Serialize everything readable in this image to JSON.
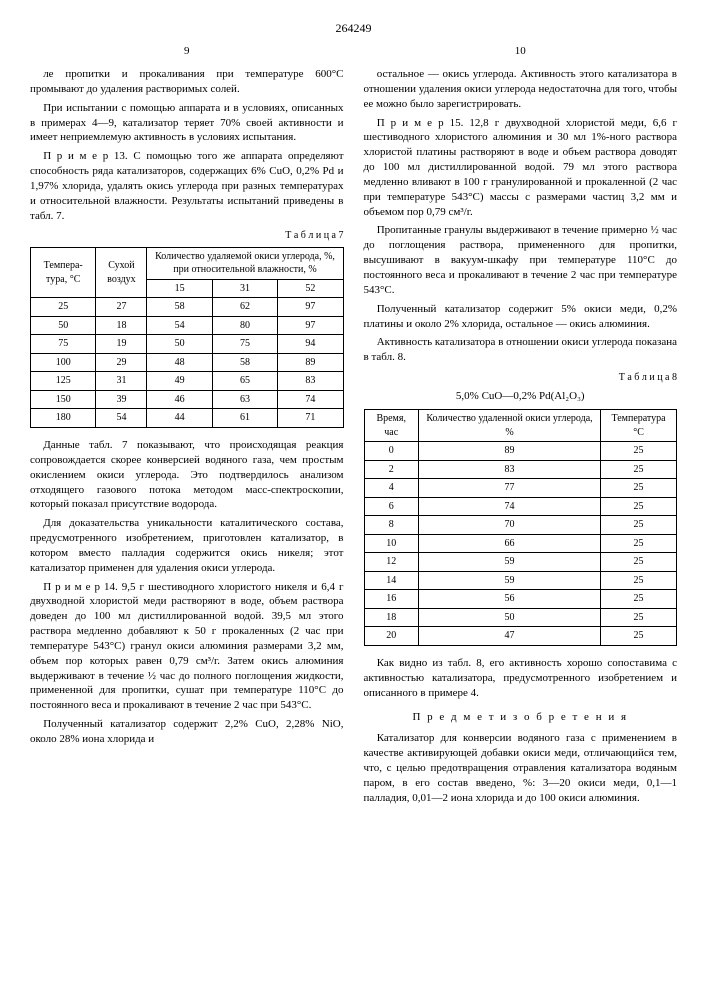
{
  "doc_number": "264249",
  "left": {
    "page": "9",
    "p1": "ле пропитки и прокаливания при температуре 600°С промывают до удаления растворимых солей.",
    "p2": "При испытании с помощью аппарата и в условиях, описанных в примерах 4—9, катализатор теряет 70% своей активности и имеет неприемлемую активность в условиях испытания.",
    "p3": "П р и м е р 13. С помощью того же аппарата определяют способность ряда катализаторов, содержащих 6% CuO, 0,2% Pd и 1,97% хлорида, удалять окись углерода при разных температурах и относительной влажности. Результаты испытаний приведены в табл. 7.",
    "table7_label": "Т а б л и ц а 7",
    "table7": {
      "headers": {
        "temp": "Темпера-\nтура, °С",
        "dry": "Сухой\nвоздух",
        "group": "Количество удаляемой\nокиси углерода, %, при\nотносительной влажности, %",
        "h15": "15",
        "h31": "31",
        "h52": "52"
      },
      "rows": [
        [
          "25",
          "27",
          "58",
          "62",
          "97"
        ],
        [
          "50",
          "18",
          "54",
          "80",
          "97"
        ],
        [
          "75",
          "19",
          "50",
          "75",
          "94"
        ],
        [
          "100",
          "29",
          "48",
          "58",
          "89"
        ],
        [
          "125",
          "31",
          "49",
          "65",
          "83"
        ],
        [
          "150",
          "39",
          "46",
          "63",
          "74"
        ],
        [
          "180",
          "54",
          "44",
          "61",
          "71"
        ]
      ]
    },
    "p4": "Данные табл. 7 показывают, что происходящая реакция сопровождается скорее конверсией водяного газа, чем простым окислением окиси углерода. Это подтвердилось анализом отходящего газового потока методом масс-спектроскопии, который показал присутствие водорода.",
    "p5": "Для доказательства уникальности каталитического состава, предусмотренного изобретением, приготовлен катализатор, в котором вместо палладия содержится окись никеля; этот катализатор применен для удаления окиси углерода.",
    "p6": "П р и м е р 14. 9,5 г шестиводного хлористого никеля и 6,4 г двухводной хлористой меди растворяют в воде, объем раствора доведен до 100 мл дистиллированной водой. 39,5 мл этого раствора медленно добавляют к 50 г прокаленных (2 час при температуре 543°С) гранул окиси алюминия размерами 3,2 мм, объем пор которых равен 0,79 см³/г. Затем окись алюминия выдерживают в течение ½ час до полного поглощения жидкости, примененной для пропитки, сушат при температуре 110°С до постоянного веса и прокаливают в течение 2 час при 543°С.",
    "p7": "Полученный катализатор содержит 2,2% CuO, 2,28% NiO, около 28% иона хлорида и"
  },
  "right": {
    "page": "10",
    "p1": "остальное — окись углерода. Активность этого катализатора в отношении удаления окиси углерода недостаточна для того, чтобы ее можно было зарегистрировать.",
    "p2": "П р и м е р 15. 12,8 г двухводной хлористой меди, 6,6 г шестиводного хлористого алюминия и 30 мл 1%-ного раствора хлористой платины растворяют в воде и объем раствора доводят до 100 мл дистиллированной водой. 79 мл этого раствора медленно вливают в 100 г гранулированной и прокаленной (2 час при температуре 543°С) массы с размерами частиц 3,2 мм и объемом пор 0,79 см³/г.",
    "p3": "Пропитанные гранулы выдерживают в течение примерно ½ час до поглощения раствора, примененного для пропитки, высушивают в вакуум-шкафу при температуре 110°С до постоянного веса и прокаливают в течение 2 час при температуре 543°С.",
    "p4": "Полученный катализатор содержит 5% окиси меди, 0,2% платины и около 2% хлорида, остальное — окись алюминия.",
    "p5": "Активность катализатора в отношении окиси углерода показана в табл. 8.",
    "table8_label": "Т а б л и ц а 8",
    "table8_caption": "5,0% CuO—0,2% Pd(Al₂O₃)",
    "table8": {
      "headers": {
        "time": "Время, час",
        "removed": "Количество\nудаленной окиси\nуглерода, %",
        "temp": "Температура °С"
      },
      "rows": [
        [
          "0",
          "89",
          "25"
        ],
        [
          "2",
          "83",
          "25"
        ],
        [
          "4",
          "77",
          "25"
        ],
        [
          "6",
          "74",
          "25"
        ],
        [
          "8",
          "70",
          "25"
        ],
        [
          "10",
          "66",
          "25"
        ],
        [
          "12",
          "59",
          "25"
        ],
        [
          "14",
          "59",
          "25"
        ],
        [
          "16",
          "56",
          "25"
        ],
        [
          "18",
          "50",
          "25"
        ],
        [
          "20",
          "47",
          "25"
        ]
      ]
    },
    "p6": "Как видно из табл. 8, его активность хорошо сопоставима с активностью катализатора, предусмотренного изобретением и описанного в примере 4.",
    "section": "П р е д м е т  и з о б р е т е н и я",
    "p7": "Катализатор для конверсии водяного газа с применением в качестве активирующей добавки окиси меди, отличающийся тем, что, с целью предотвращения отравления катализатора водяным паром, в его состав введено, %: 3—20 окиси меди, 0,1—1 палладия, 0,01—2 иона хлорида и до 100 окиси алюминия."
  }
}
